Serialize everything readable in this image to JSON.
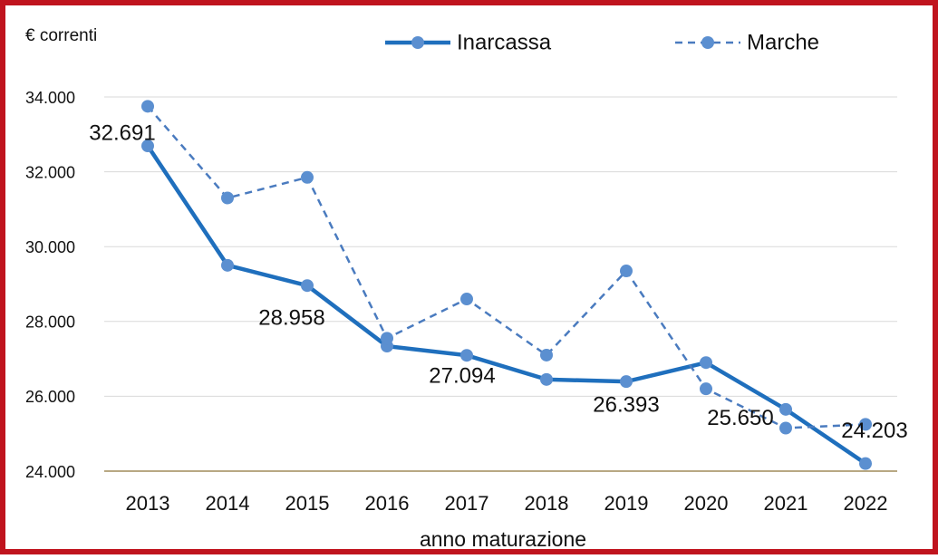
{
  "chart_data": {
    "type": "line",
    "y_axis_label": "€ correnti",
    "x_axis_label": "anno maturazione",
    "categories": [
      "2013",
      "2014",
      "2015",
      "2016",
      "2017",
      "2018",
      "2019",
      "2020",
      "2021",
      "2022"
    ],
    "series": [
      {
        "name": "Inarcassa",
        "color": "#1f6fbd",
        "style": "solid",
        "values": [
          32691,
          29500,
          28958,
          27340,
          27094,
          26450,
          26393,
          26900,
          25650,
          24203
        ],
        "value_labels": [
          "32.691",
          null,
          "28.958",
          null,
          "27.094",
          null,
          "26.393",
          null,
          "25.650",
          "24.203"
        ]
      },
      {
        "name": "Marche",
        "color": "#4a7bbf",
        "style": "dashed",
        "values": [
          33750,
          31300,
          31850,
          27550,
          28600,
          27100,
          29350,
          26200,
          25150,
          25250
        ]
      }
    ],
    "ylim": [
      24000,
      34000
    ],
    "yticks": [
      {
        "value": 24000,
        "label": "24.000"
      },
      {
        "value": 26000,
        "label": "26.000"
      },
      {
        "value": 28000,
        "label": "28.000"
      },
      {
        "value": 30000,
        "label": "30.000"
      },
      {
        "value": 32000,
        "label": "32.000"
      },
      {
        "value": 34000,
        "label": "34.000"
      }
    ],
    "grid": true,
    "legend": "top"
  }
}
